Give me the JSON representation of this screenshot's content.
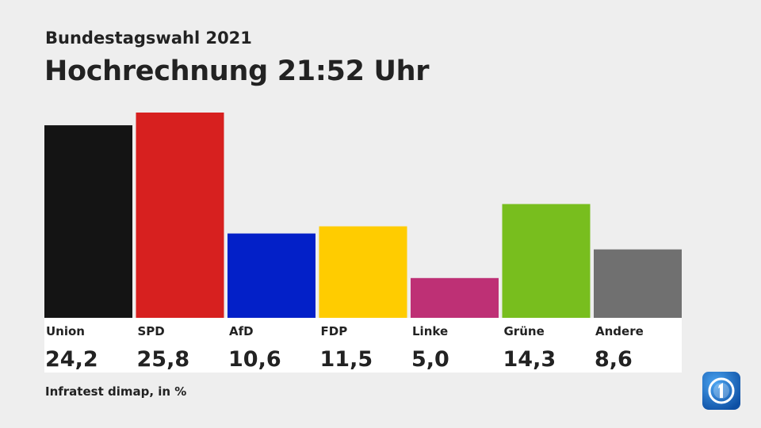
{
  "header": {
    "subtitle": "Bundestagswahl 2021",
    "title": "Hochrechnung 21:52 Uhr"
  },
  "footer": {
    "source": "Infratest dimap, in %"
  },
  "logo": {
    "name": "ard-das-erste-logo",
    "color": "#1565c0"
  },
  "chart_data": {
    "type": "bar",
    "title": "Hochrechnung 21:52 Uhr",
    "subtitle": "Bundestagswahl 2021",
    "xlabel": "",
    "ylabel": "",
    "unit": "%",
    "categories": [
      "Union",
      "SPD",
      "AfD",
      "FDP",
      "Linke",
      "Grüne",
      "Andere"
    ],
    "values": [
      24.2,
      25.8,
      10.6,
      11.5,
      5.0,
      14.3,
      8.6
    ],
    "value_labels": [
      "24,2",
      "25,8",
      "10,6",
      "11,5",
      "5,0",
      "14,3",
      "8,6"
    ],
    "colors": [
      "#141414",
      "#d7201f",
      "#0320c8",
      "#ffcc00",
      "#be3075",
      "#78be1e",
      "#707070"
    ],
    "ylim": [
      0,
      25.8
    ],
    "grid": false,
    "legend": "none"
  }
}
